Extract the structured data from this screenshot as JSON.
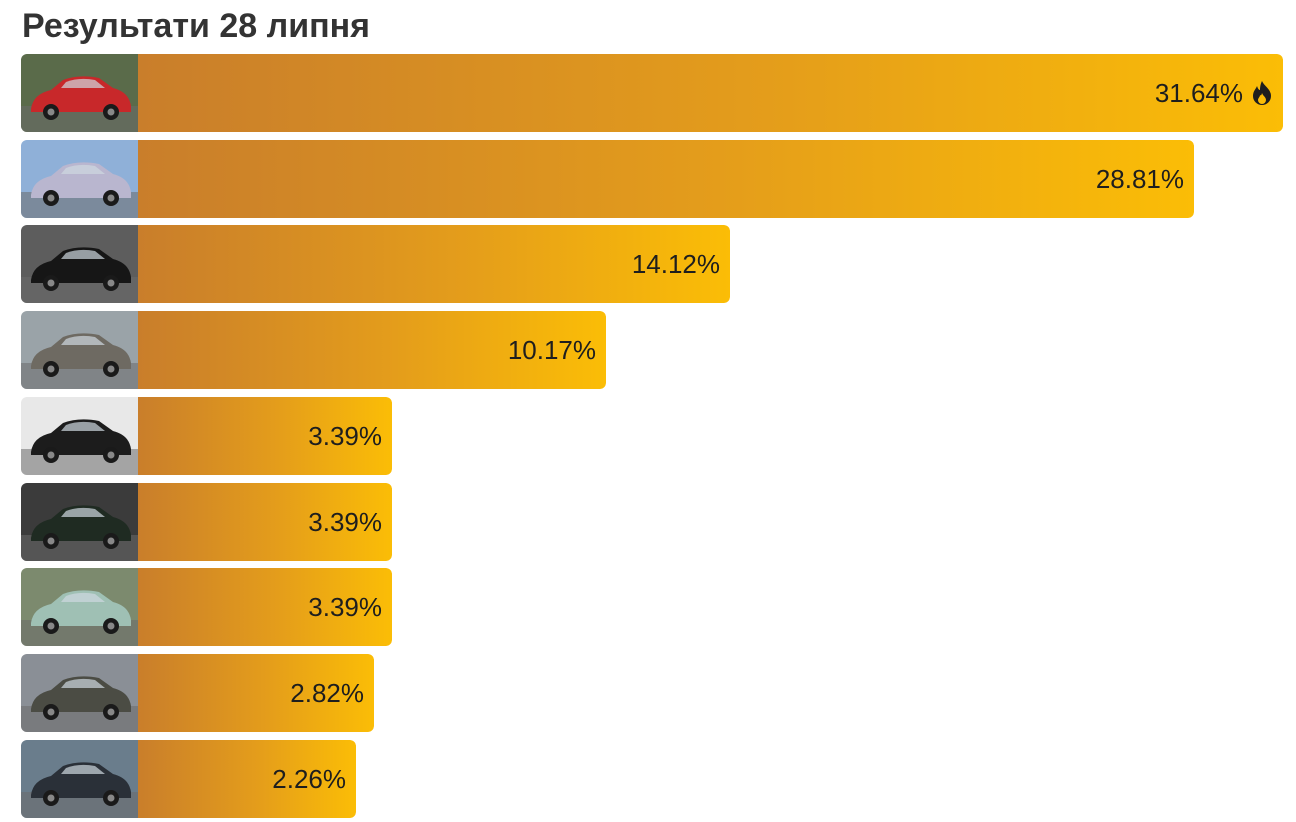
{
  "title": "Результати 28 липня",
  "chart_data": {
    "type": "bar",
    "orientation": "horizontal",
    "title": "Результати 28 липня",
    "xlim": [
      0,
      31.64
    ],
    "unit": "%",
    "values": [
      31.64,
      28.81,
      14.12,
      10.17,
      3.39,
      3.39,
      3.39,
      2.82,
      2.26
    ],
    "labels": [
      "31.64%",
      "28.81%",
      "14.12%",
      "10.17%",
      "3.39%",
      "3.39%",
      "3.39%",
      "2.82%",
      "2.26%"
    ],
    "leader_icon": "fire-icon",
    "thumbnails": [
      {
        "icon": "red-car-in-garage-icon",
        "bg": "#5a6b4a",
        "car": "#c8282a"
      },
      {
        "icon": "silver-convertible-car-icon",
        "bg": "#8fb0d8",
        "car": "#b9b6cf"
      },
      {
        "icon": "black-sedan-car-icon",
        "bg": "#5d5d5d",
        "car": "#161616"
      },
      {
        "icon": "grey-hatchback-car-icon",
        "bg": "#9aa3a8",
        "car": "#6e6a62"
      },
      {
        "icon": "black-sedan-car-icon",
        "bg": "#e8e8e8",
        "car": "#1c1c1c"
      },
      {
        "icon": "dark-green-sedan-car-icon",
        "bg": "#3b3b3b",
        "car": "#1f2b22"
      },
      {
        "icon": "light-green-sedan-car-icon",
        "bg": "#7c8a6e",
        "car": "#9fc0b4"
      },
      {
        "icon": "dark-suv-car-icon",
        "bg": "#8a8f96",
        "car": "#4b4c44"
      },
      {
        "icon": "dark-hatchback-car-icon",
        "bg": "#6a7d8c",
        "car": "#2a3038"
      }
    ],
    "colors": {
      "bar_start": "#c97e2b",
      "bar_end": "#fbbd06",
      "text": "#1e1e1e"
    }
  }
}
